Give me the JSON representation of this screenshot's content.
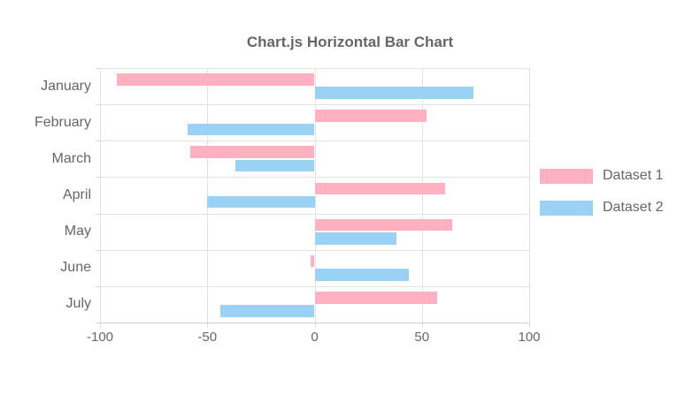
{
  "chart_data": {
    "type": "bar",
    "orientation": "horizontal",
    "title": "Chart.js Horizontal Bar Chart",
    "categories": [
      "January",
      "February",
      "March",
      "April",
      "May",
      "June",
      "July"
    ],
    "series": [
      {
        "name": "Dataset 1",
        "color": "#ffb1c1",
        "values": [
          -92,
          52,
          -58,
          61,
          64,
          -2,
          57
        ]
      },
      {
        "name": "Dataset 2",
        "color": "#9bd1f5",
        "values": [
          74,
          -59,
          -37,
          -50,
          38,
          44,
          -44
        ]
      }
    ],
    "xlim": [
      -100,
      100
    ],
    "x_ticks": [
      -100,
      -50,
      0,
      50,
      100
    ],
    "grid": true,
    "legend_position": "right",
    "text_color": "#666666",
    "grid_color": "#e3e3e3",
    "background_color": "#ffffff"
  }
}
